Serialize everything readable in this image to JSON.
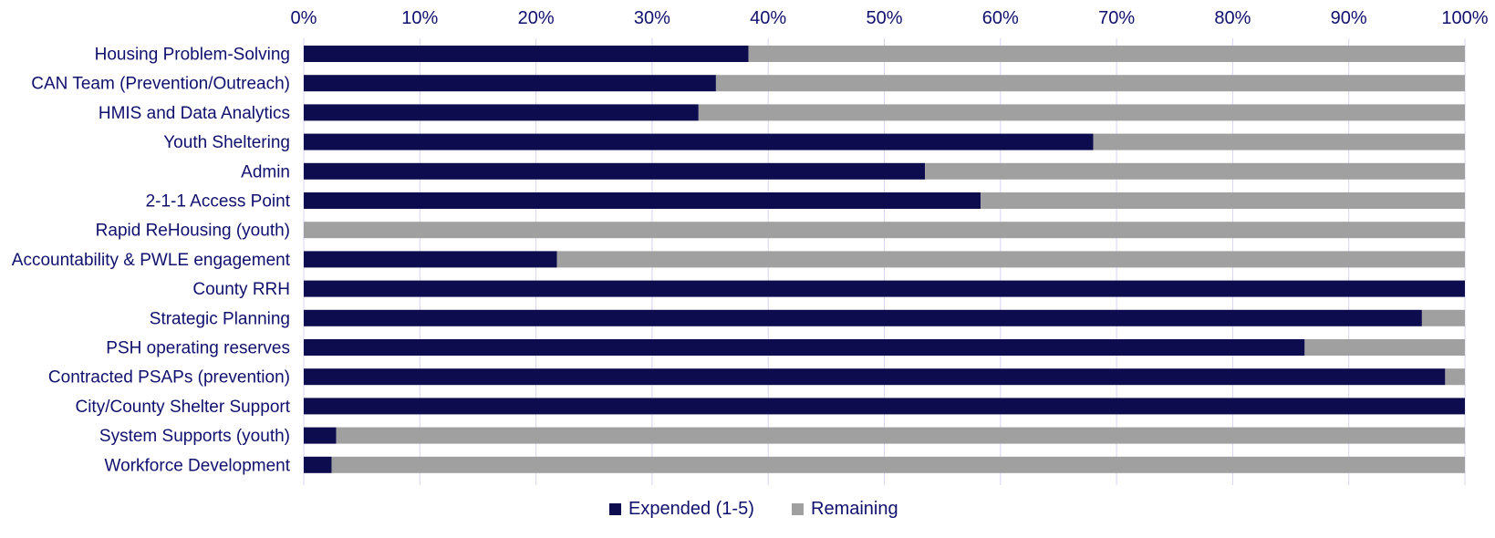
{
  "chart_data": {
    "type": "bar",
    "orientation": "horizontal",
    "stacked": true,
    "title": "",
    "xlabel": "",
    "ylabel": "",
    "xlim": [
      0,
      100
    ],
    "tick_labels": [
      "0%",
      "10%",
      "20%",
      "30%",
      "40%",
      "50%",
      "60%",
      "70%",
      "80%",
      "90%",
      "100%"
    ],
    "x_axis_position": "top",
    "grid": true,
    "legend_position": "bottom",
    "categories": [
      "Housing Problem-Solving",
      "CAN Team (Prevention/Outreach)",
      "HMIS and Data Analytics",
      "Youth Sheltering",
      "Admin",
      "2-1-1 Access Point",
      "Rapid ReHousing (youth)",
      "Accountability & PWLE engagement",
      "County RRH",
      "Strategic Planning",
      "PSH operating reserves",
      "Contracted PSAPs (prevention)",
      "City/County Shelter Support",
      "System Supports (youth)",
      "Workforce Development"
    ],
    "series": [
      {
        "name": "Expended (1-5)",
        "color": "#0c0c4e",
        "values": [
          38.3,
          35.5,
          34.0,
          68.0,
          53.5,
          58.3,
          0.0,
          21.8,
          100.0,
          96.3,
          86.2,
          98.3,
          100.0,
          2.8,
          2.4
        ]
      },
      {
        "name": "Remaining",
        "color": "#a0a0a0",
        "values": [
          61.7,
          64.5,
          66.0,
          32.0,
          46.5,
          41.7,
          100.0,
          78.2,
          0.0,
          3.7,
          13.8,
          1.7,
          0.0,
          97.2,
          97.6
        ]
      }
    ]
  }
}
